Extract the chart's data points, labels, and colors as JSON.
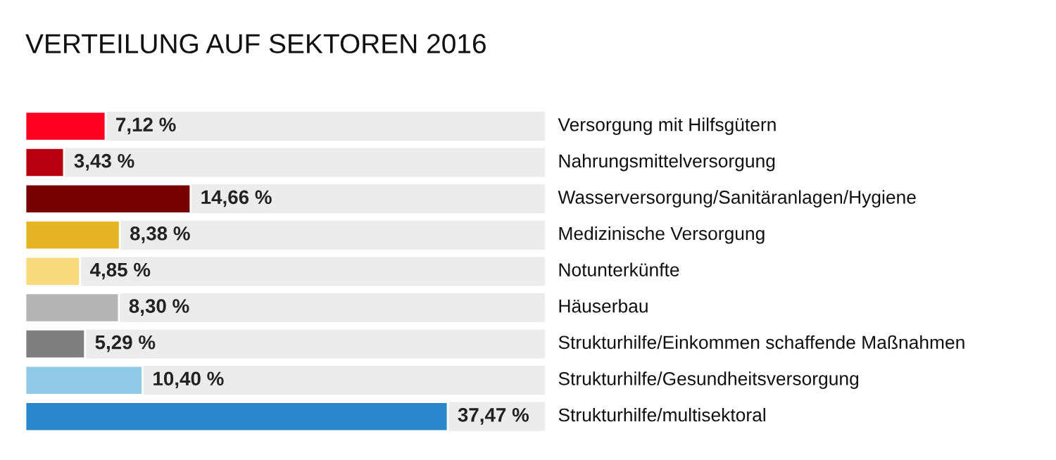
{
  "chart_data": {
    "type": "bar",
    "orientation": "horizontal",
    "title": "VERTEILUNG AUF SEKTOREN 2016",
    "categories": [
      "Versorgung mit Hilfsgütern",
      "Nahrungsmittelversorgung",
      "Wasserversorgung/Sanitäranlagen/Hygiene",
      "Medizinische Versorgung",
      "Notunterkünfte",
      "Häuserbau",
      "Strukturhilfe/Einkommen schaffende Maßnahmen",
      "Strukturhilfe/Gesundheitsversorgung",
      "Strukturhilfe/multisektoral"
    ],
    "values": [
      7.12,
      3.43,
      14.66,
      8.38,
      4.85,
      8.3,
      5.29,
      10.4,
      37.47
    ],
    "value_labels": [
      "7,12 %",
      "3,43 %",
      "14,66 %",
      "8,38 %",
      "4,85 %",
      "8,30 %",
      "5,29 %",
      "10,40 %",
      "37,47 %"
    ],
    "colors": [
      "#ff0020",
      "#b80010",
      "#780000",
      "#e5b524",
      "#f6da7c",
      "#b4b4b4",
      "#7f7f7f",
      "#8fcbe8",
      "#2a87cb"
    ]
  }
}
